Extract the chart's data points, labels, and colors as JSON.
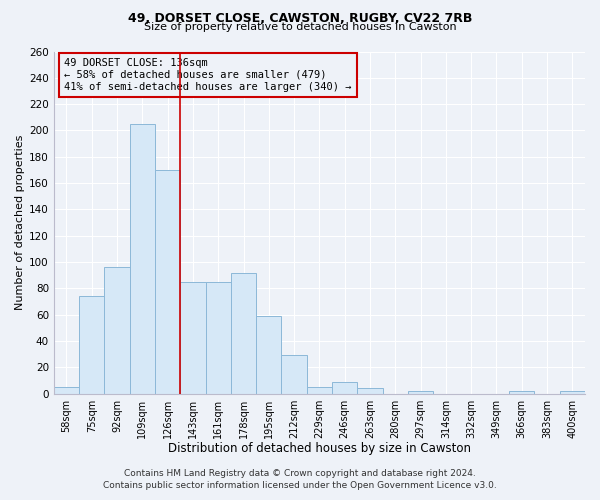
{
  "title1": "49, DORSET CLOSE, CAWSTON, RUGBY, CV22 7RB",
  "title2": "Size of property relative to detached houses in Cawston",
  "xlabel": "Distribution of detached houses by size in Cawston",
  "ylabel": "Number of detached properties",
  "bar_labels": [
    "58sqm",
    "75sqm",
    "92sqm",
    "109sqm",
    "126sqm",
    "143sqm",
    "161sqm",
    "178sqm",
    "195sqm",
    "212sqm",
    "229sqm",
    "246sqm",
    "263sqm",
    "280sqm",
    "297sqm",
    "314sqm",
    "332sqm",
    "349sqm",
    "366sqm",
    "383sqm",
    "400sqm"
  ],
  "bar_values": [
    5,
    74,
    96,
    205,
    170,
    85,
    85,
    92,
    59,
    29,
    5,
    9,
    4,
    0,
    2,
    0,
    0,
    0,
    2,
    0,
    2
  ],
  "bar_color": "#d6e8f7",
  "bar_edge_color": "#8cb8d8",
  "vline_color": "#cc0000",
  "vline_x": 5,
  "ylim": [
    0,
    260
  ],
  "yticks": [
    0,
    20,
    40,
    60,
    80,
    100,
    120,
    140,
    160,
    180,
    200,
    220,
    240,
    260
  ],
  "annotation_text": "49 DORSET CLOSE: 136sqm\n← 58% of detached houses are smaller (479)\n41% of semi-detached houses are larger (340) →",
  "annotation_box_edge": "#cc0000",
  "footer1": "Contains HM Land Registry data © Crown copyright and database right 2024.",
  "footer2": "Contains public sector information licensed under the Open Government Licence v3.0.",
  "background_color": "#eef2f8",
  "grid_color": "#ffffff",
  "title1_fontsize": 9,
  "title2_fontsize": 8,
  "xlabel_fontsize": 8.5,
  "ylabel_fontsize": 8,
  "ann_fontsize": 7.5,
  "footer_fontsize": 6.5
}
